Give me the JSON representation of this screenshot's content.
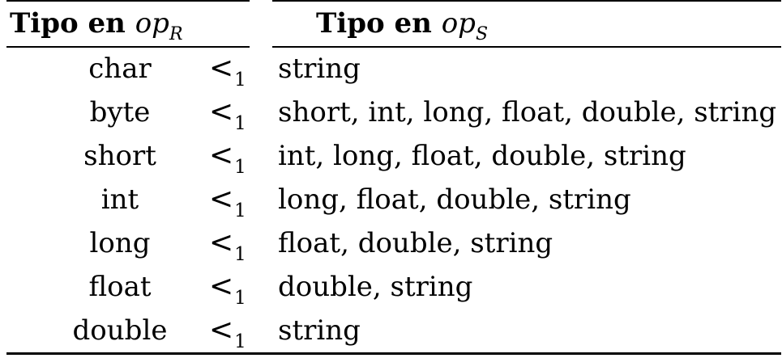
{
  "table": {
    "header": {
      "left": {
        "word": "Tipo en",
        "math": "op",
        "sub": "R"
      },
      "right": {
        "word": "Tipo en",
        "math": "op",
        "sub": "S"
      }
    },
    "relation": {
      "symbol": "<",
      "sub": "1"
    },
    "rows": [
      {
        "type": "char",
        "list": "string"
      },
      {
        "type": "byte",
        "list": "short, int, long, float, double, string"
      },
      {
        "type": "short",
        "list": "int, long, float, double, string"
      },
      {
        "type": "int",
        "list": "long, float, double, string"
      },
      {
        "type": "long",
        "list": "float, double, string"
      },
      {
        "type": "float",
        "list": "double, string"
      },
      {
        "type": "double",
        "list": "string"
      }
    ]
  }
}
